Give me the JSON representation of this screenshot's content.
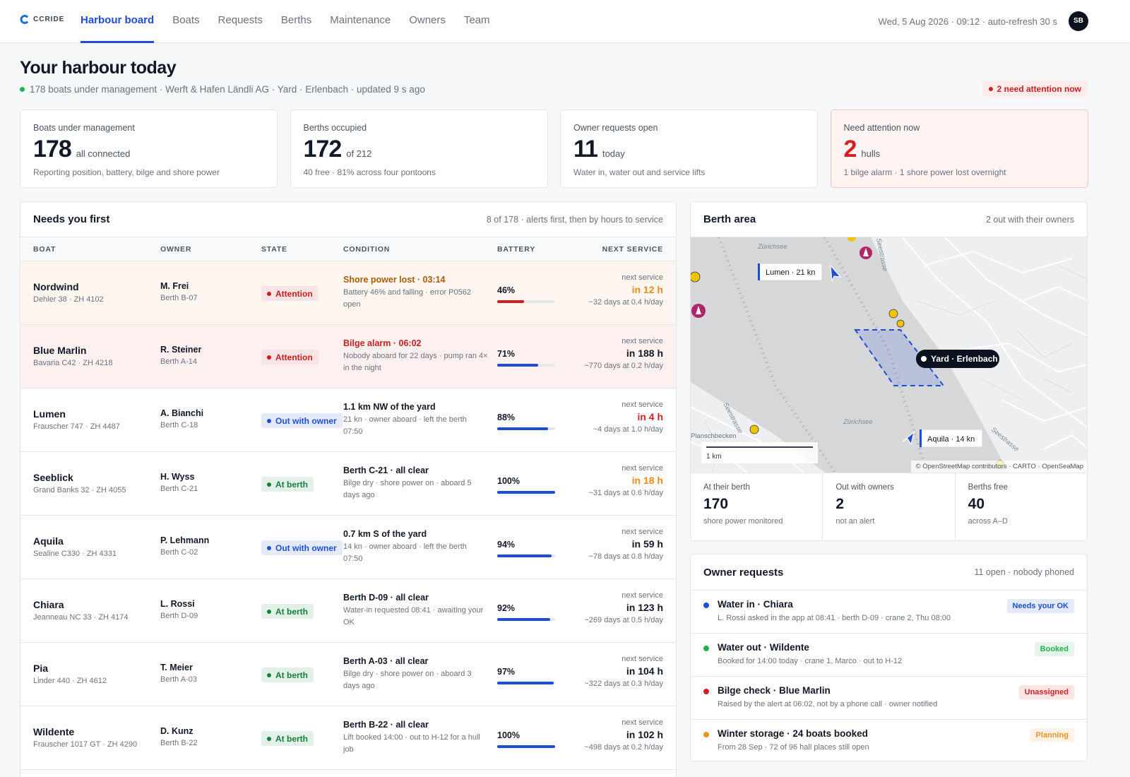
{
  "nav": {
    "brand": "CCRIDE",
    "items": [
      "Harbour board",
      "Boats",
      "Requests",
      "Berths",
      "Maintenance",
      "Owners",
      "Team"
    ],
    "active": 0,
    "status": "Wed, 5 Aug 2026 · 09:12 · auto-refresh 30 s",
    "avatar": "SB"
  },
  "header": {
    "title": "Your harbour today",
    "subtitle": "178 boats under management · Werft & Hafen Ländli AG · Yard · Erlenbach · updated 9 s ago",
    "alert": "2 need attention now"
  },
  "kpis": [
    {
      "label": "Boats under management",
      "value": "178",
      "unit": "all connected",
      "note": "Reporting position, battery, bilge and shore power",
      "value_color": "#111827",
      "card_color": "#ffffff"
    },
    {
      "label": "Berths occupied",
      "value": "172",
      "unit": "of 212",
      "note": "40 free · 81% across four pontoons",
      "value_color": "#111827",
      "card_color": "#ffffff"
    },
    {
      "label": "Owner requests open",
      "value": "11",
      "unit": "today",
      "note": "Water in, water out and service lifts",
      "value_color": "#111827",
      "card_color": "#ffffff"
    },
    {
      "label": "Need attention now",
      "value": "2",
      "unit": "hulls",
      "note": "1 bilge alarm · 1 shore power lost overnight",
      "value_color": "#d21f1f",
      "card_color": "#fff4f2"
    }
  ],
  "needs": {
    "title": "Needs you first",
    "meta": "8 of 178 · alerts first, then by hours to service",
    "columns": [
      "BOAT",
      "OWNER",
      "STATE",
      "CONDITION",
      "BATTERY",
      "NEXT SERVICE"
    ],
    "rows": [
      {
        "boat": "Nordwind",
        "model": "Dehler 38 · ZH 4102",
        "owner": "M. Frei",
        "berth": "Berth B-07",
        "state": "Attention",
        "state_color": "#c81e1e",
        "condition": "Shore power lost · 03:14",
        "condition_color": "#a85d06",
        "detail": "Battery 46% and falling · error P0562 open",
        "battery": 46,
        "battery_label": "46%",
        "battery_color": "#d21f1f",
        "next_label": "next service",
        "next_value": "in 12 h",
        "next_color": "#ea8a1a",
        "next_detail": "~32 days at 0.4 h/day",
        "row_color": "#fdf6ef"
      },
      {
        "boat": "Blue Marlin",
        "model": "Bavaria C42 · ZH 4218",
        "owner": "R. Steiner",
        "berth": "Berth A-14",
        "state": "Attention",
        "state_color": "#c81e1e",
        "condition": "Bilge alarm · 06:02",
        "condition_color": "#c81e1e",
        "detail": "Nobody aboard for 22 days · pump ran 4× in the night",
        "battery": 71,
        "battery_label": "71%",
        "battery_color": "#1d4ed8",
        "next_label": "next service",
        "next_value": "in 188 h",
        "next_color": "#111827",
        "next_detail": "~770 days at 0.2 h/day",
        "row_color": "#fdf1f0"
      },
      {
        "boat": "Lumen",
        "model": "Frauscher 747 · ZH 4487",
        "owner": "A. Bianchi",
        "berth": "Berth C-18",
        "state": "Out with owner",
        "state_color": "#1d4ed8",
        "condition": "1.1 km NW of the yard",
        "condition_color": "#111827",
        "detail": "21 kn · owner aboard · left the berth 07:50",
        "battery": 88,
        "battery_label": "88%",
        "battery_color": "#1d4ed8",
        "next_label": "next service",
        "next_value": "in 4 h",
        "next_color": "#d21f1f",
        "next_detail": "~4 days at 1.0 h/day",
        "row_color": "#ffffff"
      },
      {
        "boat": "Seeblick",
        "model": "Grand Banks 32 · ZH 4055",
        "owner": "H. Wyss",
        "berth": "Berth C-21",
        "state": "At berth",
        "state_color": "#15803d",
        "condition": "Berth C-21 · all clear",
        "condition_color": "#111827",
        "detail": "Bilge dry · shore power on · aboard 5 days ago",
        "battery": 100,
        "battery_label": "100%",
        "battery_color": "#1d4ed8",
        "next_label": "next service",
        "next_value": "in 18 h",
        "next_color": "#ea8a1a",
        "next_detail": "~31 days at 0.6 h/day",
        "row_color": "#ffffff"
      },
      {
        "boat": "Aquila",
        "model": "Sealine C330 · ZH 4331",
        "owner": "P. Lehmann",
        "berth": "Berth C-02",
        "state": "Out with owner",
        "state_color": "#1d4ed8",
        "condition": "0.7 km S of the yard",
        "condition_color": "#111827",
        "detail": "14 kn · owner aboard · left the berth 07:50",
        "battery": 94,
        "battery_label": "94%",
        "battery_color": "#1d4ed8",
        "next_label": "next service",
        "next_value": "in 59 h",
        "next_color": "#111827",
        "next_detail": "~78 days at 0.8 h/day",
        "row_color": "#ffffff"
      },
      {
        "boat": "Chiara",
        "model": "Jeanneau NC 33 · ZH 4174",
        "owner": "L. Rossi",
        "berth": "Berth D-09",
        "state": "At berth",
        "state_color": "#15803d",
        "condition": "Berth D-09 · all clear",
        "condition_color": "#111827",
        "detail": "Water-in requested 08:41 · awaiting your OK",
        "battery": 92,
        "battery_label": "92%",
        "battery_color": "#1d4ed8",
        "next_label": "next service",
        "next_value": "in 123 h",
        "next_color": "#111827",
        "next_detail": "~269 days at 0.5 h/day",
        "row_color": "#ffffff"
      },
      {
        "boat": "Pia",
        "model": "Linder 440 · ZH 4612",
        "owner": "T. Meier",
        "berth": "Berth A-03",
        "state": "At berth",
        "state_color": "#15803d",
        "condition": "Berth A-03 · all clear",
        "condition_color": "#111827",
        "detail": "Bilge dry · shore power on · aboard 3 days ago",
        "battery": 97,
        "battery_label": "97%",
        "battery_color": "#1d4ed8",
        "next_label": "next service",
        "next_value": "in 104 h",
        "next_color": "#111827",
        "next_detail": "~322 days at 0.3 h/day",
        "row_color": "#ffffff"
      },
      {
        "boat": "Wildente",
        "model": "Frauscher 1017 GT · ZH 4290",
        "owner": "D. Kunz",
        "berth": "Berth B-22",
        "state": "At berth",
        "state_color": "#15803d",
        "condition": "Berth B-22 · all clear",
        "condition_color": "#111827",
        "detail": "Lift booked 14:00 · out to H-12 for a hull job",
        "battery": 100,
        "battery_label": "100%",
        "battery_color": "#1d4ed8",
        "next_label": "next service",
        "next_value": "in 102 h",
        "next_color": "#111827",
        "next_detail": "~498 days at 0.2 h/day",
        "row_color": "#ffffff"
      }
    ]
  },
  "berth_area": {
    "title": "Berth area",
    "meta": "2 out with their owners",
    "map": {
      "labels": [
        "Zürichsee",
        "Zürichsee",
        "Planschbecken",
        "Seestrasse",
        "Seestrasse",
        "Seestrasse"
      ],
      "lumen": "Lumen · 21 kn",
      "yard": "Yard · Erlenbach",
      "aquila": "Aquila · 14 kn",
      "scale": "1 km",
      "attribution": "© OpenStreetMap contributors · CARTO · OpenSeaMap"
    },
    "stats": [
      {
        "label": "At their berth",
        "value": "170",
        "note": "shore power monitored"
      },
      {
        "label": "Out with owners",
        "value": "2",
        "note": "not an alert"
      },
      {
        "label": "Berths free",
        "value": "40",
        "note": "across A–D"
      }
    ]
  },
  "requests": {
    "title": "Owner requests",
    "meta": "11 open · nobody phoned",
    "items": [
      {
        "title": "Water in · Chiara",
        "detail": "L. Rossi asked in the app at 08:41 · berth D-09 · crane 2, Thu 08:00",
        "badge": "Needs your OK",
        "color": "#1d4ed8"
      },
      {
        "title": "Water out · Wildente",
        "detail": "Booked for 14:00 today · crane 1, Marco · out to H-12",
        "badge": "Booked",
        "color": "#22b24c"
      },
      {
        "title": "Bilge check · Blue Marlin",
        "detail": "Raised by the alert at 06:02, not by a phone call · owner notified",
        "badge": "Unassigned",
        "color": "#d21f1f"
      },
      {
        "title": "Winter storage · 24 boats booked",
        "detail": "From 28 Sep · 72 of 96 hall places still open",
        "badge": "Planning",
        "color": "#e8922a"
      }
    ]
  }
}
